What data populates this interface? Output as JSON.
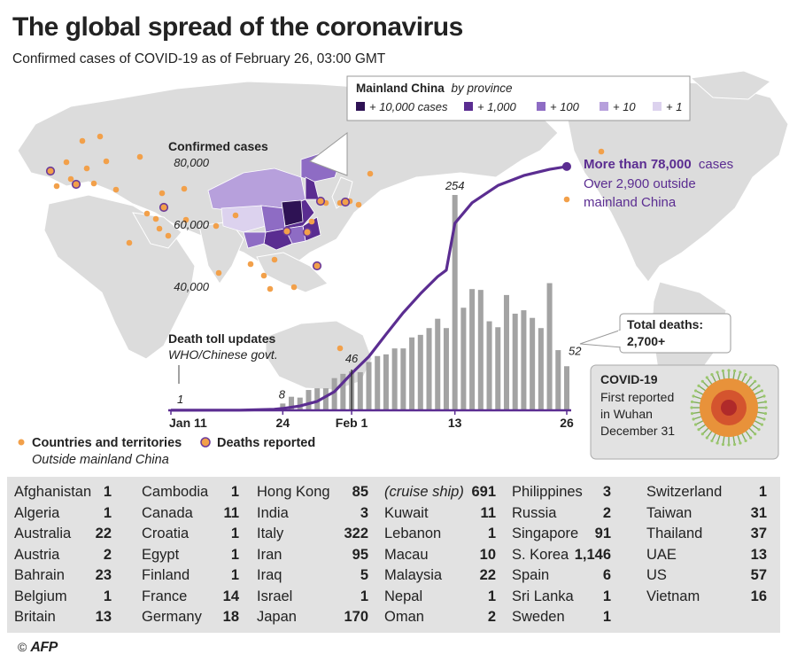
{
  "header": {
    "title": "The global spread of the coronavirus",
    "subtitle": "Confirmed cases of COVID-19 as of February 26, 03:00 GMT"
  },
  "province_legend": {
    "title_bold": "Mainland China",
    "title_italic": "by province",
    "items": [
      "+ 10,000 cases",
      "+ 1,000",
      "+ 100",
      "+ 10",
      "+ 1"
    ],
    "colors": [
      "#2e1254",
      "#5a2d91",
      "#8e6cc4",
      "#b7a0dc",
      "#dcd2ee"
    ]
  },
  "map_legend": {
    "countries_label": "Countries and territories",
    "deaths_label": "Deaths reported",
    "outside_label": "Outside mainland China",
    "dot_color": "#f2a04a",
    "death_ring_color": "#6b3a9a"
  },
  "callouts": {
    "cases_title": "Confirmed cases",
    "cases_main": "More than 78,000",
    "cases_suffix": "cases",
    "cases_line2": "Over 2,900 outside",
    "cases_line3": "mainland China",
    "death_toll_title": "Death toll updates",
    "death_toll_source": "WHO/Chinese govt.",
    "total_deaths_label": "Total deaths:",
    "total_deaths_value": "2,700+",
    "covid_title": "COVID-19",
    "covid_line1": "First reported",
    "covid_line2": "in Wuhan",
    "covid_line3": "December 31"
  },
  "chart_data": {
    "type": "bar+line",
    "title": "Confirmed cases",
    "y_axis": {
      "ticks": [
        "40,000",
        "60,000",
        "80,000"
      ],
      "tick_values": [
        40000,
        60000,
        80000
      ],
      "range": [
        0,
        80000
      ]
    },
    "x_axis": {
      "ticks": [
        "Jan 11",
        "24",
        "Feb 1",
        "13",
        "26"
      ],
      "tick_days": [
        0,
        13,
        21,
        33,
        46
      ]
    },
    "cases_line": {
      "name": "Confirmed cases",
      "days": [
        0,
        8,
        12,
        13,
        15,
        17,
        19,
        21,
        23,
        25,
        27,
        29,
        31,
        32,
        33,
        35,
        38,
        41,
        44,
        46
      ],
      "values": [
        41,
        45,
        300,
        600,
        1400,
        2900,
        6000,
        11900,
        17300,
        24500,
        31500,
        37600,
        43100,
        45200,
        60300,
        66900,
        72500,
        75700,
        77700,
        78600
      ],
      "end_label": "More than 78,000"
    },
    "death_bars": {
      "name": "Death toll updates",
      "days": [
        13,
        14,
        15,
        16,
        17,
        18,
        19,
        20,
        21,
        22,
        23,
        24,
        25,
        26,
        27,
        28,
        29,
        30,
        31,
        32,
        33,
        34,
        35,
        36,
        37,
        38,
        39,
        40,
        41,
        42,
        43,
        44,
        45,
        46
      ],
      "values": [
        8,
        16,
        15,
        24,
        26,
        26,
        38,
        43,
        46,
        45,
        57,
        64,
        66,
        73,
        73,
        86,
        89,
        97,
        108,
        97,
        254,
        121,
        143,
        142,
        105,
        98,
        136,
        114,
        118,
        109,
        97,
        150,
        71,
        52
      ],
      "labels": {
        "0": "1",
        "13": "8",
        "21": "46",
        "33": "254",
        "46": "52"
      },
      "first_point": {
        "day": 0,
        "value": 1
      }
    }
  },
  "countries_table": {
    "columns": [
      [
        {
          "name": "Afghanistan",
          "value": "1"
        },
        {
          "name": "Algeria",
          "value": "1"
        },
        {
          "name": "Australia",
          "value": "22"
        },
        {
          "name": "Austria",
          "value": "2"
        },
        {
          "name": "Bahrain",
          "value": "23"
        },
        {
          "name": "Belgium",
          "value": "1"
        },
        {
          "name": "Britain",
          "value": "13"
        }
      ],
      [
        {
          "name": "Cambodia",
          "value": "1"
        },
        {
          "name": "Canada",
          "value": "11"
        },
        {
          "name": "Croatia",
          "value": "1"
        },
        {
          "name": "Egypt",
          "value": "1"
        },
        {
          "name": "Finland",
          "value": "1"
        },
        {
          "name": "France",
          "value": "14"
        },
        {
          "name": "Germany",
          "value": "18"
        }
      ],
      [
        {
          "name": "Hong Kong",
          "value": "85"
        },
        {
          "name": "India",
          "value": "3"
        },
        {
          "name": "Italy",
          "value": "322"
        },
        {
          "name": "Iran",
          "value": "95"
        },
        {
          "name": "Iraq",
          "value": "5"
        },
        {
          "name": "Israel",
          "value": "1"
        },
        {
          "name": "Japan",
          "value": "170"
        }
      ],
      [
        {
          "name": "(cruise ship)",
          "value": "691",
          "italic": true
        },
        {
          "name": "Kuwait",
          "value": "11"
        },
        {
          "name": "Lebanon",
          "value": "1"
        },
        {
          "name": "Macau",
          "value": "10"
        },
        {
          "name": "Malaysia",
          "value": "22"
        },
        {
          "name": "Nepal",
          "value": "1"
        },
        {
          "name": "Oman",
          "value": "2"
        }
      ],
      [
        {
          "name": "Philippines",
          "value": "3"
        },
        {
          "name": "Russia",
          "value": "2"
        },
        {
          "name": "Singapore",
          "value": "91"
        },
        {
          "name": "S. Korea",
          "value": "1,146"
        },
        {
          "name": "Spain",
          "value": "6"
        },
        {
          "name": "Sri Lanka",
          "value": "1"
        },
        {
          "name": "Sweden",
          "value": "1"
        }
      ],
      [
        {
          "name": "Switzerland",
          "value": "1"
        },
        {
          "name": "Taiwan",
          "value": "31"
        },
        {
          "name": "Thailand",
          "value": "37"
        },
        {
          "name": "UAE",
          "value": "13"
        },
        {
          "name": "US",
          "value": "57"
        },
        {
          "name": "Vietnam",
          "value": "16"
        }
      ]
    ]
  },
  "footer": {
    "copyright": "©",
    "agency": "AFP"
  },
  "colors": {
    "line": "#5b2d91",
    "bars": "#a3a3a3",
    "land": "#dcdcdc",
    "ocean": "#ffffff",
    "table_bg": "#e2e2e2"
  }
}
